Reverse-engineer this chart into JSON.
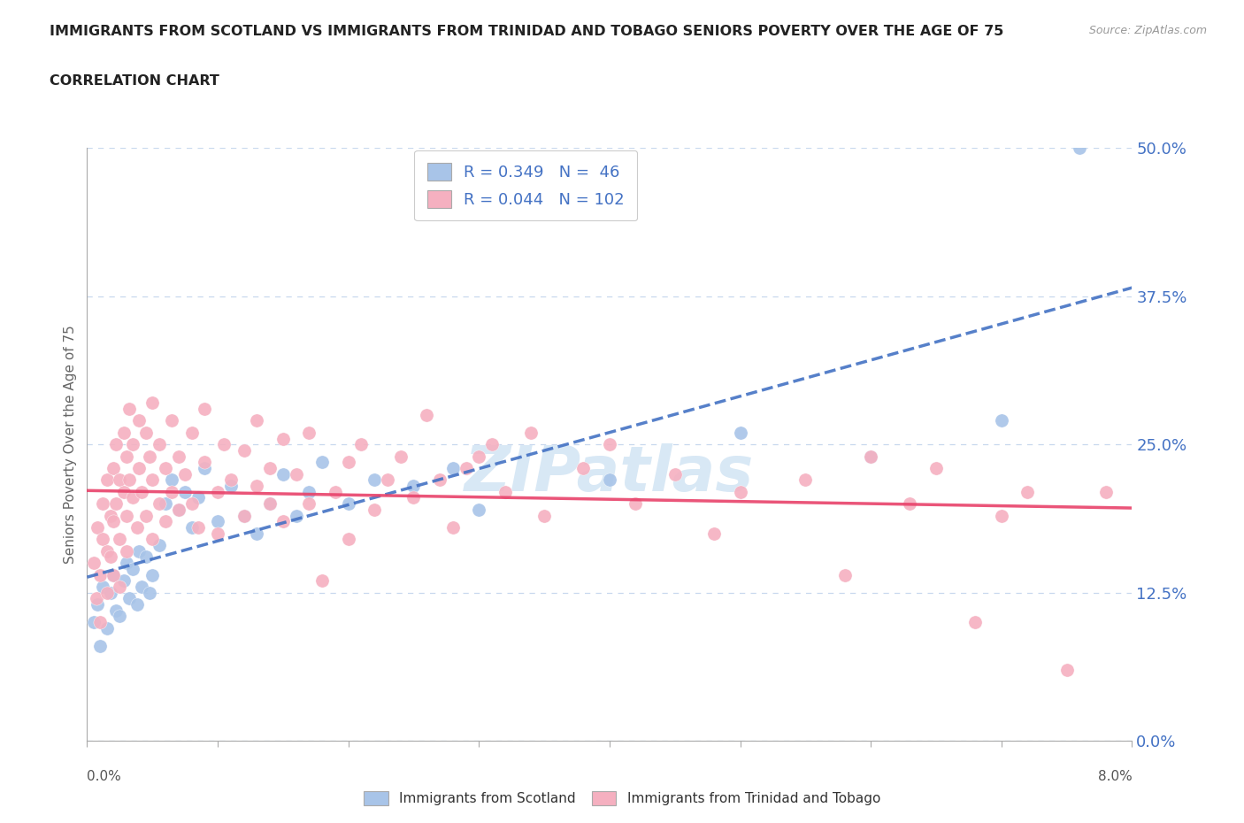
{
  "title_line1": "IMMIGRANTS FROM SCOTLAND VS IMMIGRANTS FROM TRINIDAD AND TOBAGO SENIORS POVERTY OVER THE AGE OF 75",
  "title_line2": "CORRELATION CHART",
  "source_text": "Source: ZipAtlas.com",
  "ylabel": "Seniors Poverty Over the Age of 75",
  "xlim": [
    0.0,
    8.0
  ],
  "ylim": [
    0.0,
    50.0
  ],
  "yticks": [
    0.0,
    12.5,
    25.0,
    37.5,
    50.0
  ],
  "xticks": [
    0.0,
    1.0,
    2.0,
    3.0,
    4.0,
    5.0,
    6.0,
    7.0,
    8.0
  ],
  "scotland_R": 0.349,
  "scotland_N": 46,
  "trinidad_R": 0.044,
  "trinidad_N": 102,
  "scotland_color": "#a8c4e8",
  "trinidad_color": "#f5b0c0",
  "scotland_line_color": "#4472c4",
  "trinidad_line_color": "#e8426a",
  "watermark_color": "#d8e8f5",
  "grid_color": "#c8d8ee",
  "scotland_points": [
    [
      0.05,
      10.0
    ],
    [
      0.08,
      11.5
    ],
    [
      0.1,
      8.0
    ],
    [
      0.12,
      13.0
    ],
    [
      0.15,
      9.5
    ],
    [
      0.18,
      12.5
    ],
    [
      0.2,
      14.0
    ],
    [
      0.22,
      11.0
    ],
    [
      0.25,
      10.5
    ],
    [
      0.28,
      13.5
    ],
    [
      0.3,
      15.0
    ],
    [
      0.32,
      12.0
    ],
    [
      0.35,
      14.5
    ],
    [
      0.38,
      11.5
    ],
    [
      0.4,
      16.0
    ],
    [
      0.42,
      13.0
    ],
    [
      0.45,
      15.5
    ],
    [
      0.48,
      12.5
    ],
    [
      0.5,
      14.0
    ],
    [
      0.55,
      16.5
    ],
    [
      0.6,
      20.0
    ],
    [
      0.65,
      22.0
    ],
    [
      0.7,
      19.5
    ],
    [
      0.75,
      21.0
    ],
    [
      0.8,
      18.0
    ],
    [
      0.85,
      20.5
    ],
    [
      0.9,
      23.0
    ],
    [
      1.0,
      18.5
    ],
    [
      1.1,
      21.5
    ],
    [
      1.2,
      19.0
    ],
    [
      1.3,
      17.5
    ],
    [
      1.4,
      20.0
    ],
    [
      1.5,
      22.5
    ],
    [
      1.6,
      19.0
    ],
    [
      1.7,
      21.0
    ],
    [
      1.8,
      23.5
    ],
    [
      2.0,
      20.0
    ],
    [
      2.2,
      22.0
    ],
    [
      2.5,
      21.5
    ],
    [
      2.8,
      23.0
    ],
    [
      3.0,
      19.5
    ],
    [
      4.0,
      22.0
    ],
    [
      5.0,
      26.0
    ],
    [
      6.0,
      24.0
    ],
    [
      7.0,
      27.0
    ],
    [
      7.6,
      50.0
    ]
  ],
  "trinidad_points": [
    [
      0.05,
      15.0
    ],
    [
      0.07,
      12.0
    ],
    [
      0.08,
      18.0
    ],
    [
      0.1,
      10.0
    ],
    [
      0.1,
      14.0
    ],
    [
      0.12,
      17.0
    ],
    [
      0.12,
      20.0
    ],
    [
      0.15,
      22.0
    ],
    [
      0.15,
      16.0
    ],
    [
      0.15,
      12.5
    ],
    [
      0.18,
      19.0
    ],
    [
      0.18,
      15.5
    ],
    [
      0.2,
      23.0
    ],
    [
      0.2,
      18.5
    ],
    [
      0.2,
      14.0
    ],
    [
      0.22,
      25.0
    ],
    [
      0.22,
      20.0
    ],
    [
      0.25,
      17.0
    ],
    [
      0.25,
      22.0
    ],
    [
      0.25,
      13.0
    ],
    [
      0.28,
      26.0
    ],
    [
      0.28,
      21.0
    ],
    [
      0.3,
      19.0
    ],
    [
      0.3,
      24.0
    ],
    [
      0.3,
      16.0
    ],
    [
      0.32,
      28.0
    ],
    [
      0.32,
      22.0
    ],
    [
      0.35,
      20.5
    ],
    [
      0.35,
      25.0
    ],
    [
      0.38,
      18.0
    ],
    [
      0.4,
      23.0
    ],
    [
      0.4,
      27.0
    ],
    [
      0.42,
      21.0
    ],
    [
      0.45,
      26.0
    ],
    [
      0.45,
      19.0
    ],
    [
      0.48,
      24.0
    ],
    [
      0.5,
      22.0
    ],
    [
      0.5,
      17.0
    ],
    [
      0.5,
      28.5
    ],
    [
      0.55,
      20.0
    ],
    [
      0.55,
      25.0
    ],
    [
      0.6,
      23.0
    ],
    [
      0.6,
      18.5
    ],
    [
      0.65,
      27.0
    ],
    [
      0.65,
      21.0
    ],
    [
      0.7,
      19.5
    ],
    [
      0.7,
      24.0
    ],
    [
      0.75,
      22.5
    ],
    [
      0.8,
      20.0
    ],
    [
      0.8,
      26.0
    ],
    [
      0.85,
      18.0
    ],
    [
      0.9,
      23.5
    ],
    [
      0.9,
      28.0
    ],
    [
      1.0,
      21.0
    ],
    [
      1.0,
      17.5
    ],
    [
      1.05,
      25.0
    ],
    [
      1.1,
      22.0
    ],
    [
      1.2,
      19.0
    ],
    [
      1.2,
      24.5
    ],
    [
      1.3,
      21.5
    ],
    [
      1.3,
      27.0
    ],
    [
      1.4,
      20.0
    ],
    [
      1.4,
      23.0
    ],
    [
      1.5,
      18.5
    ],
    [
      1.5,
      25.5
    ],
    [
      1.6,
      22.5
    ],
    [
      1.7,
      20.0
    ],
    [
      1.7,
      26.0
    ],
    [
      1.8,
      13.5
    ],
    [
      1.9,
      21.0
    ],
    [
      2.0,
      23.5
    ],
    [
      2.0,
      17.0
    ],
    [
      2.1,
      25.0
    ],
    [
      2.2,
      19.5
    ],
    [
      2.3,
      22.0
    ],
    [
      2.4,
      24.0
    ],
    [
      2.5,
      20.5
    ],
    [
      2.6,
      27.5
    ],
    [
      2.7,
      22.0
    ],
    [
      2.8,
      18.0
    ],
    [
      3.0,
      24.0
    ],
    [
      3.2,
      21.0
    ],
    [
      3.4,
      26.0
    ],
    [
      3.5,
      19.0
    ],
    [
      3.8,
      23.0
    ],
    [
      4.0,
      25.0
    ],
    [
      4.2,
      20.0
    ],
    [
      4.5,
      22.5
    ],
    [
      5.0,
      21.0
    ],
    [
      5.5,
      22.0
    ],
    [
      6.0,
      24.0
    ],
    [
      6.5,
      23.0
    ],
    [
      6.8,
      10.0
    ],
    [
      7.0,
      19.0
    ],
    [
      7.2,
      21.0
    ],
    [
      7.5,
      6.0
    ],
    [
      4.8,
      17.5
    ],
    [
      5.8,
      14.0
    ],
    [
      6.3,
      20.0
    ],
    [
      7.8,
      21.0
    ],
    [
      3.1,
      25.0
    ],
    [
      2.9,
      23.0
    ]
  ]
}
